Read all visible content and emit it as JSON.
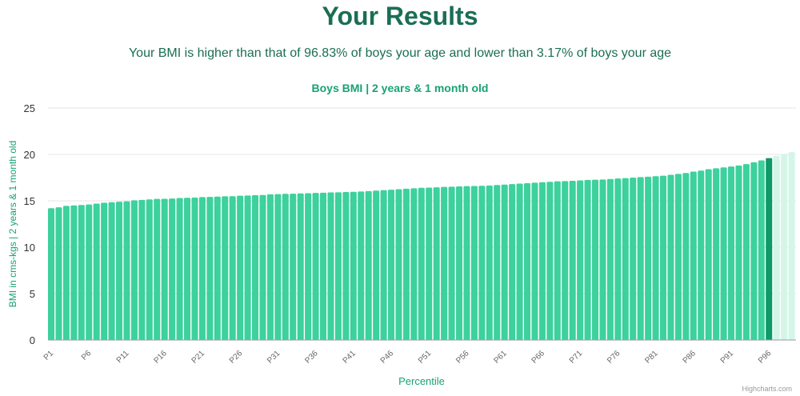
{
  "page": {
    "title": "Your Results",
    "subtitle": "Your BMI is higher than that of 96.83% of boys your age and lower than 3.17% of boys your age",
    "credits": "Highcharts.com"
  },
  "colors": {
    "heading": "#1b6e55",
    "accent": "#17a275",
    "bar": "#3cd19d",
    "highlight": "#0e9a6b",
    "above": "#d3f6e8",
    "grid": "#e6e6e6",
    "axis_text": "#333333",
    "tick_text": "#666666"
  },
  "chart_data": {
    "type": "bar",
    "title": "Boys BMI | 2 years & 1 month old",
    "xlabel": "Percentile",
    "ylabel": "BMI in cms-kgs | 2 years & 1 month old",
    "ylim": [
      0,
      25
    ],
    "yticks": [
      0,
      5,
      10,
      15,
      20,
      25
    ],
    "grid": true,
    "legend": "none",
    "categories": [
      "P1",
      "P2",
      "P3",
      "P4",
      "P5",
      "P6",
      "P7",
      "P8",
      "P9",
      "P10",
      "P11",
      "P12",
      "P13",
      "P14",
      "P15",
      "P16",
      "P17",
      "P18",
      "P19",
      "P20",
      "P21",
      "P22",
      "P23",
      "P24",
      "P25",
      "P26",
      "P27",
      "P28",
      "P29",
      "P30",
      "P31",
      "P32",
      "P33",
      "P34",
      "P35",
      "P36",
      "P37",
      "P38",
      "P39",
      "P40",
      "P41",
      "P42",
      "P43",
      "P44",
      "P45",
      "P46",
      "P47",
      "P48",
      "P49",
      "P50",
      "P51",
      "P52",
      "P53",
      "P54",
      "P55",
      "P56",
      "P57",
      "P58",
      "P59",
      "P60",
      "P61",
      "P62",
      "P63",
      "P64",
      "P65",
      "P66",
      "P67",
      "P68",
      "P69",
      "P70",
      "P71",
      "P72",
      "P73",
      "P74",
      "P75",
      "P76",
      "P77",
      "P78",
      "P79",
      "P80",
      "P81",
      "P82",
      "P83",
      "P84",
      "P85",
      "P86",
      "P87",
      "P88",
      "P89",
      "P90",
      "P91",
      "P92",
      "P93",
      "P94",
      "P95",
      "P96",
      "P97",
      "P98",
      "P99"
    ],
    "visible_tick_labels": [
      "P1",
      "P6",
      "P11",
      "P16",
      "P21",
      "P26",
      "P31",
      "P36",
      "P41",
      "P46",
      "P51",
      "P56",
      "P61",
      "P66",
      "P71",
      "P76",
      "P81",
      "P86",
      "P91",
      "P96"
    ],
    "values": [
      14.2,
      14.3,
      14.45,
      14.5,
      14.55,
      14.6,
      14.7,
      14.8,
      14.85,
      14.9,
      14.95,
      15.05,
      15.1,
      15.15,
      15.2,
      15.22,
      15.25,
      15.3,
      15.32,
      15.35,
      15.4,
      15.42,
      15.45,
      15.48,
      15.5,
      15.55,
      15.57,
      15.6,
      15.62,
      15.7,
      15.72,
      15.75,
      15.77,
      15.8,
      15.82,
      15.85,
      15.87,
      15.9,
      15.92,
      15.95,
      15.97,
      16.0,
      16.05,
      16.1,
      16.15,
      16.2,
      16.25,
      16.3,
      16.35,
      16.4,
      16.42,
      16.45,
      16.5,
      16.52,
      16.55,
      16.58,
      16.6,
      16.62,
      16.65,
      16.7,
      16.75,
      16.8,
      16.85,
      16.9,
      16.95,
      17.0,
      17.05,
      17.1,
      17.12,
      17.15,
      17.2,
      17.25,
      17.27,
      17.3,
      17.35,
      17.4,
      17.45,
      17.5,
      17.55,
      17.6,
      17.65,
      17.7,
      17.8,
      17.9,
      18.0,
      18.15,
      18.25,
      18.4,
      18.5,
      18.6,
      18.7,
      18.8,
      18.95,
      19.15,
      19.35,
      19.6,
      19.85,
      20.0,
      20.25
    ],
    "highlight_index": 95,
    "highlight_category": "P96"
  }
}
